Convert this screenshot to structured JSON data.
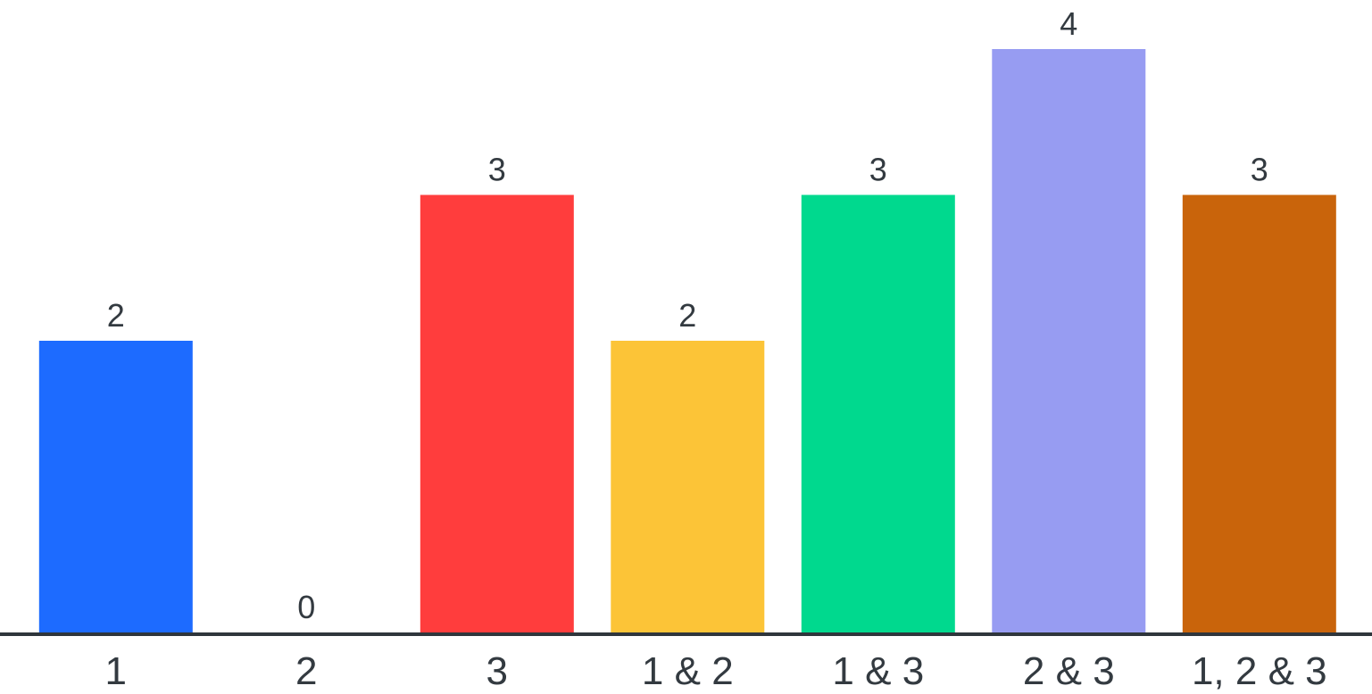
{
  "chart_data": {
    "type": "bar",
    "categories": [
      "1",
      "2",
      "3",
      "1 & 2",
      "1 & 3",
      "2 & 3",
      "1, 2 & 3"
    ],
    "values": [
      2,
      0,
      3,
      2,
      3,
      4,
      3
    ],
    "colors": [
      "#1d6bff",
      "#000000",
      "#ff3d3d",
      "#fcc437",
      "#00d98e",
      "#979cf2",
      "#c9640b"
    ],
    "axis_color": "#2f363c",
    "ylim": [
      0,
      4
    ],
    "data_labels": true,
    "grid": false,
    "title": "",
    "xlabel": "",
    "ylabel": ""
  }
}
